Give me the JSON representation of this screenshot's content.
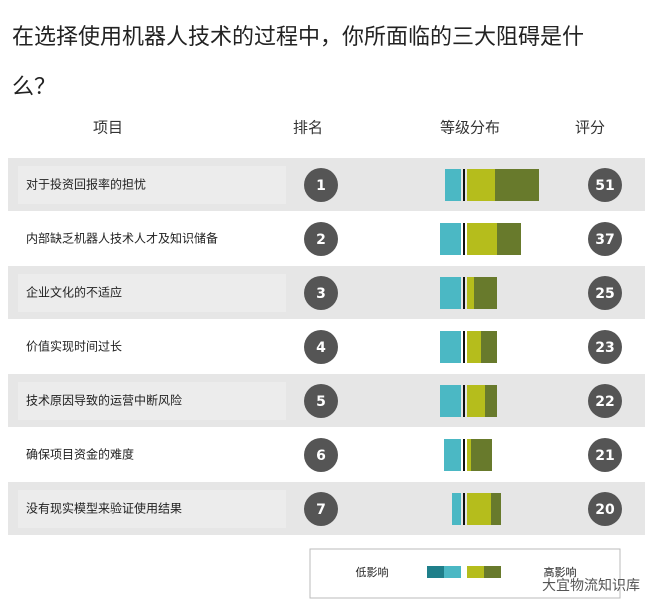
{
  "header": {
    "title_line1": "在选择使用机器人技术的过程中，你所面临的三大阻碍是什",
    "title_line2": "么？"
  },
  "columns": [
    "项目",
    "排名",
    "等级分布",
    "评分"
  ],
  "rows": [
    {
      "item": "对于投资回报率的担忧",
      "rank": "1",
      "score": "51",
      "impact": [
        16,
        28,
        44
      ]
    },
    {
      "item": "内部缺乏机器人技术人才及知识储备",
      "rank": "2",
      "score": "37",
      "impact": [
        21,
        30,
        24
      ]
    },
    {
      "item": "企业文化的不适应",
      "rank": "3",
      "score": "25",
      "impact": [
        21,
        7,
        23
      ]
    },
    {
      "item": "价值实现时间过长",
      "rank": "4",
      "score": "23",
      "impact": [
        21,
        14,
        16
      ]
    },
    {
      "item": "技术原因导致的运营中断风险",
      "rank": "5",
      "score": "22",
      "impact": [
        21,
        18,
        12
      ]
    },
    {
      "item": "确保项目资金的难度",
      "rank": "6",
      "score": "21",
      "impact": [
        17,
        4,
        21
      ]
    },
    {
      "item": "没有现实模型来验证使用结果",
      "rank": "7",
      "score": "20",
      "impact": [
        9,
        24,
        10
      ]
    }
  ],
  "impact_colors": [
    "#4bb8c4",
    "#b5bd1c",
    "#687a2c"
  ],
  "legend": {
    "low": "低影响",
    "high": "高影响"
  },
  "watermark": "大宜物流知识库"
}
